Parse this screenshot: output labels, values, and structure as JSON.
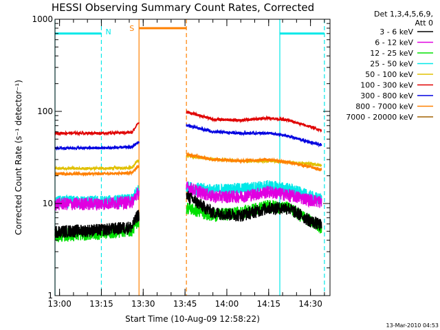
{
  "chart_data": {
    "type": "line",
    "title": "HESSI Observing Summary Count Rates, Corrected",
    "xlabel": "Start Time (10-Aug-09 12:58:22)",
    "ylabel": "Corrected Count Rate (s⁻¹ detector⁻¹)",
    "yscale": "log",
    "xlim": [
      "12:58:22",
      "14:37:00"
    ],
    "ylim": [
      1,
      1000
    ],
    "x_ticks": [
      "13:00",
      "13:15",
      "13:30",
      "13:45",
      "14:00",
      "14:15",
      "14:30"
    ],
    "y_ticks": [
      {
        "value": 1,
        "label": "1"
      },
      {
        "value": 10,
        "label": "10"
      },
      {
        "value": 100,
        "label": "100"
      },
      {
        "value": 1000,
        "label": "1000"
      }
    ],
    "legend": {
      "position": "top-right",
      "header": [
        "Det 1,3,4,5,6,9,",
        "Att 0"
      ]
    },
    "gap": {
      "start": "13:28:30",
      "end": "13:45:30"
    },
    "series": [
      {
        "name": "3 - 6 keV",
        "color": "#000000",
        "points": [
          [
            "12:58:22",
            5
          ],
          [
            "13:15",
            5.2
          ],
          [
            "13:26",
            5.6
          ],
          [
            "13:28",
            7.5
          ],
          [
            "13:46",
            12
          ],
          [
            "13:55",
            8
          ],
          [
            "14:05",
            7.5
          ],
          [
            "14:15",
            9
          ],
          [
            "14:22",
            9
          ],
          [
            "14:30",
            6.5
          ],
          [
            "14:34",
            5.8
          ]
        ]
      },
      {
        "name": "6 - 12 keV",
        "color": "#e000e0",
        "points": [
          [
            "12:58:22",
            10
          ],
          [
            "13:15",
            10
          ],
          [
            "13:26",
            10.5
          ],
          [
            "13:28",
            13
          ],
          [
            "13:46",
            15
          ],
          [
            "13:55",
            12
          ],
          [
            "14:05",
            12
          ],
          [
            "14:15",
            13.5
          ],
          [
            "14:22",
            12.5
          ],
          [
            "14:30",
            11
          ],
          [
            "14:34",
            10.5
          ]
        ]
      },
      {
        "name": "12 - 25 keV",
        "color": "#00e000",
        "points": [
          [
            "12:58:22",
            4.5
          ],
          [
            "13:15",
            4.8
          ],
          [
            "13:26",
            5.2
          ],
          [
            "13:28",
            6.5
          ],
          [
            "13:46",
            9
          ],
          [
            "13:55",
            7.5
          ],
          [
            "14:05",
            8
          ],
          [
            "14:15",
            9.5
          ],
          [
            "14:22",
            9
          ],
          [
            "14:30",
            6.5
          ],
          [
            "14:34",
            5.5
          ]
        ]
      },
      {
        "name": "25 - 50 keV",
        "color": "#00e8e8",
        "points": [
          [
            "12:58:22",
            10.5
          ],
          [
            "13:15",
            10.5
          ],
          [
            "13:26",
            11
          ],
          [
            "13:28",
            14
          ],
          [
            "13:46",
            15
          ],
          [
            "13:55",
            14
          ],
          [
            "14:05",
            14.5
          ],
          [
            "14:15",
            15.5
          ],
          [
            "14:22",
            14.5
          ],
          [
            "14:30",
            12
          ],
          [
            "14:34",
            11
          ]
        ]
      },
      {
        "name": "50 - 100 keV",
        "color": "#e0c000",
        "points": [
          [
            "12:58:22",
            24
          ],
          [
            "13:15",
            24
          ],
          [
            "13:26",
            24.5
          ],
          [
            "13:28",
            29
          ],
          [
            "13:46",
            33
          ],
          [
            "13:55",
            30
          ],
          [
            "14:05",
            29
          ],
          [
            "14:15",
            29
          ],
          [
            "14:22",
            28
          ],
          [
            "14:30",
            27
          ],
          [
            "14:34",
            26
          ]
        ]
      },
      {
        "name": "100 - 300 keV",
        "color": "#e00000",
        "points": [
          [
            "12:58:22",
            58
          ],
          [
            "13:15",
            58
          ],
          [
            "13:26",
            59
          ],
          [
            "13:28",
            74
          ],
          [
            "13:46",
            98
          ],
          [
            "13:55",
            82
          ],
          [
            "14:05",
            80
          ],
          [
            "14:15",
            85
          ],
          [
            "14:22",
            80
          ],
          [
            "14:30",
            68
          ],
          [
            "14:34",
            62
          ]
        ]
      },
      {
        "name": "300 - 800 keV",
        "color": "#0000e0",
        "points": [
          [
            "12:58:22",
            40
          ],
          [
            "13:15",
            40
          ],
          [
            "13:26",
            41
          ],
          [
            "13:28",
            46
          ],
          [
            "13:46",
            70
          ],
          [
            "13:55",
            60
          ],
          [
            "14:05",
            58
          ],
          [
            "14:15",
            58
          ],
          [
            "14:22",
            54
          ],
          [
            "14:30",
            46
          ],
          [
            "14:34",
            43
          ]
        ]
      },
      {
        "name": "800 - 7000 keV",
        "color": "#ff8000",
        "points": [
          [
            "12:58:22",
            21
          ],
          [
            "13:15",
            21
          ],
          [
            "13:26",
            21.5
          ],
          [
            "13:28",
            25
          ],
          [
            "13:46",
            34
          ],
          [
            "13:55",
            30
          ],
          [
            "14:05",
            29
          ],
          [
            "14:15",
            30
          ],
          [
            "14:22",
            28
          ],
          [
            "14:30",
            25
          ],
          [
            "14:34",
            23
          ]
        ]
      },
      {
        "name": "7000 - 20000 keV",
        "color": "#a06000",
        "points": []
      }
    ],
    "orbit_flags": [
      {
        "label": "",
        "color": "#00e8e8",
        "value": 700,
        "start": "12:58:22",
        "end": "13:15:00"
      },
      {
        "label": "S",
        "color": "#ff8000",
        "value": 800,
        "start": "13:28:30",
        "end": "13:45:30"
      },
      {
        "label": "",
        "color": "#00e8e8",
        "value": 700,
        "start": "14:19:00",
        "end": "14:35:00"
      }
    ],
    "night_markers": [
      {
        "time": "12:58:22",
        "color": "#00e8e8",
        "style": "solid"
      },
      {
        "time": "13:15:00",
        "color": "#00e8e8",
        "style": "dashed",
        "label": "N"
      },
      {
        "time": "13:28:30",
        "color": "#ff8000",
        "style": "solid"
      },
      {
        "time": "13:45:30",
        "color": "#ff8000",
        "style": "dashed"
      },
      {
        "time": "14:19:00",
        "color": "#00e8e8",
        "style": "solid"
      },
      {
        "time": "14:35:00",
        "color": "#00e8e8",
        "style": "dashed"
      }
    ]
  },
  "footer": {
    "timestamp": "13-Mar-2010 04:53"
  }
}
